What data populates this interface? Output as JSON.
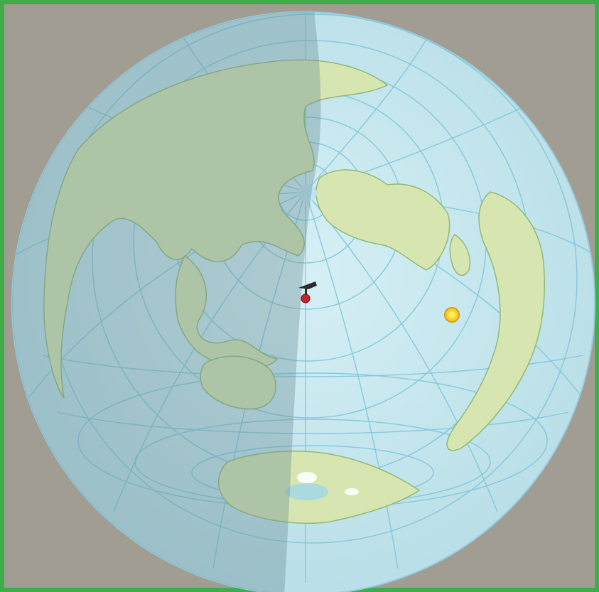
{
  "view": {
    "projection": "azimuthal",
    "frame_color": "#3fae4a",
    "background_color": "#a29d93",
    "ocean_color": "#c9e8ef",
    "land_color": "#d7e6b0",
    "coastline_color": "#8fb97a",
    "graticule_color": "#7cc7db",
    "night_shade_color": "#6b8e96"
  },
  "markers": [
    {
      "name": "satellite-icon",
      "color": "#2b2b2b"
    },
    {
      "name": "observer-location-marker",
      "color": "#c0272d"
    },
    {
      "name": "sun-icon",
      "color": "#f4d21f"
    }
  ]
}
